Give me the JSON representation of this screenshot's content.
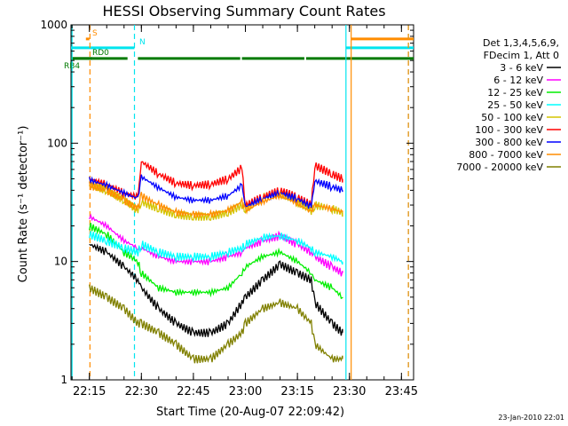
{
  "chart_data": {
    "type": "line",
    "title": "HESSI Observing Summary Count Rates",
    "xlabel": "Start Time (20-Aug-07 22:09:42)",
    "ylabel": "Count Rate (s⁻¹ detector⁻¹)",
    "log_y": true,
    "ylim": [
      1,
      1000
    ],
    "xlim": [
      "22:09:42",
      "23:48:30"
    ],
    "x_ticks": [
      "22:15",
      "22:30",
      "22:45",
      "23:00",
      "23:15",
      "23:30",
      "23:45"
    ],
    "y_ticks": [
      "1",
      "10",
      "100",
      "1000"
    ],
    "grid": false,
    "legend_position": "right",
    "legend_header": [
      "Det 1,3,4,5,6,9,",
      "FDecim 1, Att 0"
    ],
    "footer_date": "23-Jan-2010 22:01",
    "flags": [
      {
        "label": "S",
        "color": "#ff8c00",
        "segments": [
          [
            "22:14:00",
            "22:15:00"
          ],
          [
            "23:30:30",
            "23:48:30"
          ]
        ],
        "value": 760
      },
      {
        "label": "N",
        "color": "#00e5ee",
        "segments": [
          [
            "22:09:42",
            "22:28:00"
          ],
          [
            "23:29:00",
            "23:48:30"
          ]
        ],
        "value": 640
      },
      {
        "label": "RD0",
        "color": "#007a00",
        "segments": [
          [
            "22:09:42",
            "22:16:00"
          ],
          [
            "22:16:00",
            "22:26:00"
          ],
          [
            "22:29:00",
            "22:58:30"
          ],
          [
            "22:59:00",
            "23:17:00"
          ],
          [
            "23:17:30",
            "23:48:30"
          ]
        ],
        "value": 520
      },
      {
        "label": "RB4",
        "color": "#007a00",
        "segments": [
          [
            "22:09:42",
            "22:16:00"
          ]
        ],
        "value": 520
      }
    ],
    "vlines": [
      {
        "time": "22:15:10",
        "color": "#ff8c00",
        "style": "dashed"
      },
      {
        "time": "22:10:00",
        "color": "#00e5ee",
        "style": "solid"
      },
      {
        "time": "22:28:00",
        "color": "#00e5ee",
        "style": "dashed"
      },
      {
        "time": "23:29:00",
        "color": "#00e5ee",
        "style": "solid"
      },
      {
        "time": "23:30:30",
        "color": "#ff8c00",
        "style": "solid"
      },
      {
        "time": "23:47:00",
        "color": "#00e5ee",
        "style": "dashed"
      },
      {
        "time": "23:47:00",
        "color": "#ff8c00",
        "style": "dashed"
      }
    ],
    "x": [
      "22:15",
      "22:20",
      "22:25",
      "22:29",
      "22:30",
      "22:35",
      "22:40",
      "22:45",
      "22:50",
      "22:55",
      "22:59",
      "23:00",
      "23:05",
      "23:10",
      "23:15",
      "23:19",
      "23:20",
      "23:25",
      "23:28"
    ],
    "series": [
      {
        "name": "3 - 6 keV",
        "color": "#000000",
        "values": [
          14,
          12,
          9,
          7,
          6,
          4,
          3,
          2.5,
          2.5,
          3,
          4.5,
          5,
          7,
          9.5,
          8,
          7,
          4.5,
          3,
          2.5
        ]
      },
      {
        "name": "6 - 12 keV",
        "color": "#ff00ff",
        "values": [
          24,
          20,
          15,
          13,
          13,
          11,
          10,
          10,
          10,
          11,
          12,
          13,
          15,
          16.5,
          14,
          12,
          11,
          9,
          8
        ]
      },
      {
        "name": "12 - 25 keV",
        "color": "#00ee00",
        "values": [
          20,
          17,
          12,
          10,
          8,
          6,
          5.5,
          5.5,
          5.5,
          6,
          8,
          9,
          11,
          12,
          10,
          8,
          7,
          6,
          5
        ]
      },
      {
        "name": "25 - 50 keV",
        "color": "#00ffff",
        "values": [
          17,
          15,
          13,
          12,
          14,
          12,
          11,
          11,
          11,
          12,
          13,
          14,
          16,
          16.5,
          15,
          13,
          12,
          11,
          10
        ]
      },
      {
        "name": "50 - 100 keV",
        "color": "#d4c400",
        "values": [
          45,
          40,
          33,
          27,
          32,
          28,
          25,
          24,
          24,
          26,
          30,
          28,
          35,
          38,
          32,
          27,
          30,
          28,
          26
        ]
      },
      {
        "name": "100 - 300 keV",
        "color": "#ff0000",
        "values": [
          50,
          45,
          38,
          35,
          70,
          55,
          46,
          44,
          45,
          50,
          62,
          30,
          35,
          40,
          35,
          30,
          65,
          55,
          50
        ]
      },
      {
        "name": "300 - 800 keV",
        "color": "#0000ff",
        "values": [
          49,
          44,
          38,
          34,
          52,
          42,
          35,
          33,
          33,
          36,
          44,
          29,
          34,
          38,
          34,
          29,
          48,
          43,
          40
        ]
      },
      {
        "name": "800 - 7000 keV",
        "color": "#ff8c00",
        "values": [
          44,
          40,
          33,
          28,
          36,
          30,
          26,
          25,
          25,
          27,
          32,
          27,
          32,
          36,
          31,
          26,
          30,
          28,
          26
        ]
      },
      {
        "name": "7000 - 20000 keV",
        "color": "#808000",
        "values": [
          6,
          5,
          4,
          3,
          3,
          2.5,
          2,
          1.5,
          1.5,
          2,
          2.5,
          3,
          4,
          4.5,
          4,
          3,
          2,
          1.5,
          1.5
        ]
      }
    ]
  }
}
